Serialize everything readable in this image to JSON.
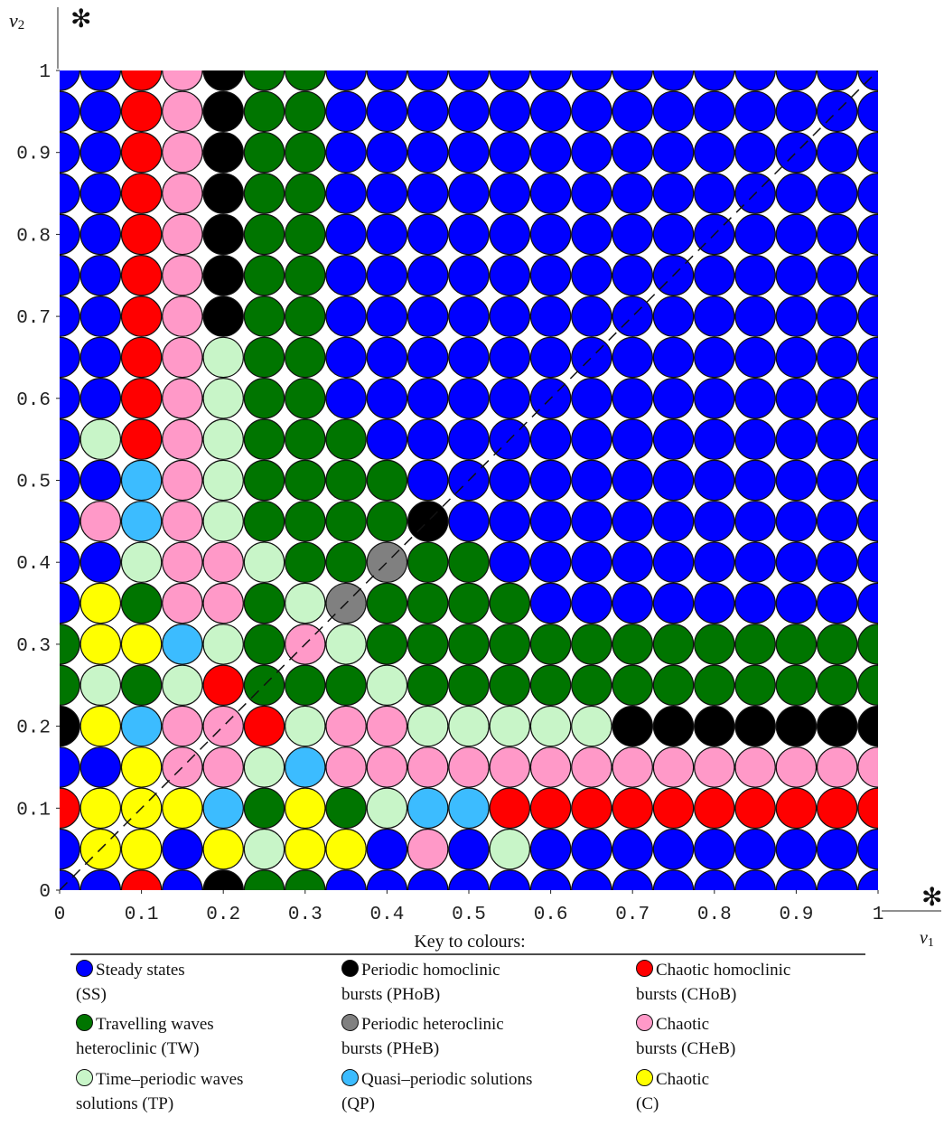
{
  "chart_data": {
    "type": "grid",
    "xlabel": "v",
    "xlabel_sub": "1",
    "ylabel": "v",
    "ylabel_sub": "2",
    "x_marker": "✻",
    "y_marker": "✻",
    "legend_title": "Key to colours:",
    "xlim": [
      0,
      1
    ],
    "ylim": [
      0,
      1
    ],
    "xticks": [
      0,
      0.1,
      0.2,
      0.3,
      0.4,
      0.5,
      0.6,
      0.7,
      0.8,
      0.9,
      1
    ],
    "yticks": [
      0,
      0.1,
      0.2,
      0.3,
      0.4,
      0.5,
      0.6,
      0.7,
      0.8,
      0.9,
      1
    ],
    "diagonal": true,
    "x": [
      0,
      0.05,
      0.1,
      0.15,
      0.2,
      0.25,
      0.3,
      0.35,
      0.4,
      0.45,
      0.5,
      0.55,
      0.6,
      0.65,
      0.7,
      0.75,
      0.8,
      0.85,
      0.9,
      0.95,
      1
    ],
    "y": [
      1,
      0.95,
      0.9,
      0.85,
      0.8,
      0.75,
      0.7,
      0.65,
      0.6,
      0.55,
      0.5,
      0.45,
      0.4,
      0.35,
      0.3,
      0.25,
      0.2,
      0.15,
      0.1,
      0.05,
      0
    ],
    "series": [
      {
        "name": "Steady states\n(SS)",
        "color": "#0000ff"
      },
      {
        "name": "Periodic homoclinic\nbursts (PHoB)",
        "color": "#000000"
      },
      {
        "name": "Chaotic homoclinic\nbursts (CHoB)",
        "color": "#ff0000"
      },
      {
        "name": "Travelling waves\nheteroclinic (TW)",
        "color": "#007500"
      },
      {
        "name": "Periodic heteroclinic\nbursts (PHeB)",
        "color": "#808080"
      },
      {
        "name": "Chaotic\nbursts (CHeB)",
        "color": "#ff99c8"
      },
      {
        "name": "Time–periodic waves\nsolutions (TP)",
        "color": "#c8f5c8"
      },
      {
        "name": "Quasi–periodic solutions\n(QP)",
        "color": "#3cbcff"
      },
      {
        "name": "Chaotic\n(C)",
        "color": "#ffff00"
      }
    ],
    "z": [
      [
        0,
        0,
        2,
        5,
        1,
        3,
        3,
        0,
        0,
        0,
        0,
        0,
        0,
        0,
        0,
        0,
        0,
        0,
        0,
        0,
        0
      ],
      [
        0,
        0,
        2,
        5,
        1,
        3,
        3,
        0,
        0,
        0,
        0,
        0,
        0,
        0,
        0,
        0,
        0,
        0,
        0,
        0,
        0
      ],
      [
        0,
        0,
        2,
        5,
        1,
        3,
        3,
        0,
        0,
        0,
        0,
        0,
        0,
        0,
        0,
        0,
        0,
        0,
        0,
        0,
        0
      ],
      [
        0,
        0,
        2,
        5,
        1,
        3,
        3,
        0,
        0,
        0,
        0,
        0,
        0,
        0,
        0,
        0,
        0,
        0,
        0,
        0,
        0
      ],
      [
        0,
        0,
        2,
        5,
        1,
        3,
        3,
        0,
        0,
        0,
        0,
        0,
        0,
        0,
        0,
        0,
        0,
        0,
        0,
        0,
        0
      ],
      [
        0,
        0,
        2,
        5,
        1,
        3,
        3,
        0,
        0,
        0,
        0,
        0,
        0,
        0,
        0,
        0,
        0,
        0,
        0,
        0,
        0
      ],
      [
        0,
        0,
        2,
        5,
        1,
        3,
        3,
        0,
        0,
        0,
        0,
        0,
        0,
        0,
        0,
        0,
        0,
        0,
        0,
        0,
        0
      ],
      [
        0,
        0,
        2,
        5,
        6,
        3,
        3,
        0,
        0,
        0,
        0,
        0,
        0,
        0,
        0,
        0,
        0,
        0,
        0,
        0,
        0
      ],
      [
        0,
        0,
        2,
        5,
        6,
        3,
        3,
        0,
        0,
        0,
        0,
        0,
        0,
        0,
        0,
        0,
        0,
        0,
        0,
        0,
        0
      ],
      [
        0,
        6,
        2,
        5,
        6,
        3,
        3,
        3,
        0,
        0,
        0,
        0,
        0,
        0,
        0,
        0,
        0,
        0,
        0,
        0,
        0
      ],
      [
        0,
        0,
        7,
        5,
        6,
        3,
        3,
        3,
        3,
        0,
        0,
        0,
        0,
        0,
        0,
        0,
        0,
        0,
        0,
        0,
        0
      ],
      [
        0,
        5,
        7,
        5,
        6,
        3,
        3,
        3,
        3,
        1,
        0,
        0,
        0,
        0,
        0,
        0,
        0,
        0,
        0,
        0,
        0
      ],
      [
        0,
        0,
        6,
        5,
        5,
        6,
        3,
        3,
        4,
        3,
        3,
        0,
        0,
        0,
        0,
        0,
        0,
        0,
        0,
        0,
        0
      ],
      [
        0,
        8,
        3,
        5,
        5,
        3,
        6,
        4,
        3,
        3,
        3,
        3,
        0,
        0,
        0,
        0,
        0,
        0,
        0,
        0,
        0
      ],
      [
        3,
        8,
        8,
        7,
        6,
        3,
        5,
        6,
        3,
        3,
        3,
        3,
        3,
        3,
        3,
        3,
        3,
        3,
        3,
        3,
        3
      ],
      [
        3,
        6,
        3,
        6,
        2,
        3,
        3,
        3,
        6,
        3,
        3,
        3,
        3,
        3,
        3,
        3,
        3,
        3,
        3,
        3,
        3
      ],
      [
        1,
        8,
        7,
        5,
        5,
        2,
        6,
        5,
        5,
        6,
        6,
        6,
        6,
        6,
        1,
        1,
        1,
        1,
        1,
        1,
        1
      ],
      [
        0,
        0,
        8,
        5,
        5,
        6,
        7,
        5,
        5,
        5,
        5,
        5,
        5,
        5,
        5,
        5,
        5,
        5,
        5,
        5,
        5
      ],
      [
        2,
        8,
        8,
        8,
        7,
        3,
        8,
        3,
        6,
        7,
        7,
        2,
        2,
        2,
        2,
        2,
        2,
        2,
        2,
        2,
        2
      ],
      [
        0,
        8,
        8,
        0,
        8,
        6,
        8,
        8,
        0,
        5,
        0,
        6,
        0,
        0,
        0,
        0,
        0,
        0,
        0,
        0,
        0
      ],
      [
        0,
        0,
        2,
        0,
        1,
        3,
        3,
        0,
        0,
        0,
        0,
        0,
        0,
        0,
        0,
        0,
        0,
        0,
        0,
        0,
        0
      ]
    ]
  }
}
